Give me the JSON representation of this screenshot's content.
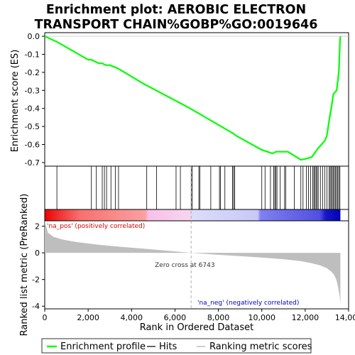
{
  "chart_data": {
    "type": "line",
    "title_lines": [
      "Enrichment plot: AEROBIC ELECTRON",
      "TRANSPORT CHAIN%GOBP%GO:0019646"
    ],
    "es_panel": {
      "ylabel": "Enrichment score (ES)",
      "ylim": [
        -0.72,
        0.02
      ],
      "yticks": [
        0.0,
        -0.1,
        -0.2,
        -0.3,
        -0.4,
        -0.5,
        -0.6,
        -0.7
      ],
      "ytick_labels": [
        "0.0",
        "-0.1",
        "-0.2",
        "-0.3",
        "-0.4",
        "-0.5",
        "-0.6",
        "-0.7"
      ],
      "line_color": "#00ff00",
      "series_x": [
        0,
        550,
        2000,
        2150,
        2500,
        2650,
        2800,
        3000,
        3400,
        4500,
        6700,
        8700,
        8800,
        10000,
        10500,
        10650,
        11000,
        11200,
        11800,
        12000,
        12300,
        12600,
        12900,
        13000,
        13100,
        13200,
        13300,
        13450,
        13550,
        13580,
        13600,
        13620
      ],
      "series_y": [
        0.0,
        -0.03,
        -0.13,
        -0.13,
        -0.15,
        -0.15,
        -0.16,
        -0.16,
        -0.18,
        -0.26,
        -0.4,
        -0.54,
        -0.55,
        -0.63,
        -0.65,
        -0.64,
        -0.64,
        -0.64,
        -0.685,
        -0.68,
        -0.67,
        -0.62,
        -0.58,
        -0.55,
        -0.47,
        -0.4,
        -0.32,
        -0.3,
        -0.2,
        -0.1,
        -0.03,
        0.0
      ]
    },
    "hits": [
      560,
      2150,
      2380,
      2650,
      2750,
      2850,
      3050,
      3250,
      3400,
      4700,
      5150,
      6050,
      6250,
      6750,
      6800,
      7100,
      7150,
      7650,
      8050,
      8100,
      8300,
      8650,
      8700,
      8750,
      10000,
      10150,
      10400,
      10550,
      10600,
      10650,
      10700,
      10850,
      11050,
      11100,
      11500,
      11800,
      11900,
      12050,
      12150,
      12250,
      12350,
      12400,
      12450,
      12500,
      12550,
      12600,
      12700,
      12800,
      12900,
      13000,
      13100,
      13150,
      13200,
      13250,
      13300,
      13350,
      13400,
      13450,
      13500,
      13550,
      13600
    ],
    "rank_panel": {
      "ylabel": "Ranked list metric (PreRanked)",
      "ylim": [
        -4.2,
        2.4
      ],
      "yticks": [
        2,
        0,
        -2,
        -4
      ],
      "ytick_labels": [
        "2",
        "0",
        "-2",
        "-4"
      ],
      "metric_x": [
        0,
        150,
        400,
        800,
        1500,
        2500,
        3500,
        4500,
        5500,
        6743,
        8000,
        9000,
        10000,
        11000,
        11800,
        12300,
        12700,
        13000,
        13200,
        13350,
        13450,
        13520,
        13580,
        13620
      ],
      "metric_y": [
        2.4,
        1.5,
        1.2,
        1.0,
        0.8,
        0.6,
        0.45,
        0.32,
        0.18,
        0.0,
        -0.15,
        -0.25,
        -0.35,
        -0.48,
        -0.62,
        -0.78,
        -0.95,
        -1.15,
        -1.4,
        -1.7,
        -2.1,
        -2.6,
        -3.2,
        -3.8
      ],
      "zero_cross_label": "Zero cross at 6743",
      "zero_cross_x": 6743,
      "pos_label": "'na_pos' (positively correlated)",
      "neg_label": "'na_neg' (negatively correlated)",
      "pos_color": "#dd0000",
      "neg_color": "#0000cc",
      "fill_color": "#bebebe"
    },
    "xaxis": {
      "xlabel": "Rank in Ordered Dataset",
      "xlim": [
        0,
        14000
      ],
      "xticks": [
        0,
        2000,
        4000,
        6000,
        8000,
        10000,
        12000,
        14000
      ],
      "xtick_labels": [
        "0",
        "2,000",
        "4,000",
        "6,000",
        "8,000",
        "10,000",
        "12,000",
        "14,000"
      ],
      "n_genes": 13620
    },
    "legend": {
      "placement": "bottom",
      "entries": [
        {
          "label": "Enrichment profile",
          "color": "#00ff00"
        },
        {
          "label": "Hits",
          "color": "#000000"
        },
        {
          "label": "Ranking metric scores",
          "color": "#bebebe"
        }
      ]
    }
  }
}
